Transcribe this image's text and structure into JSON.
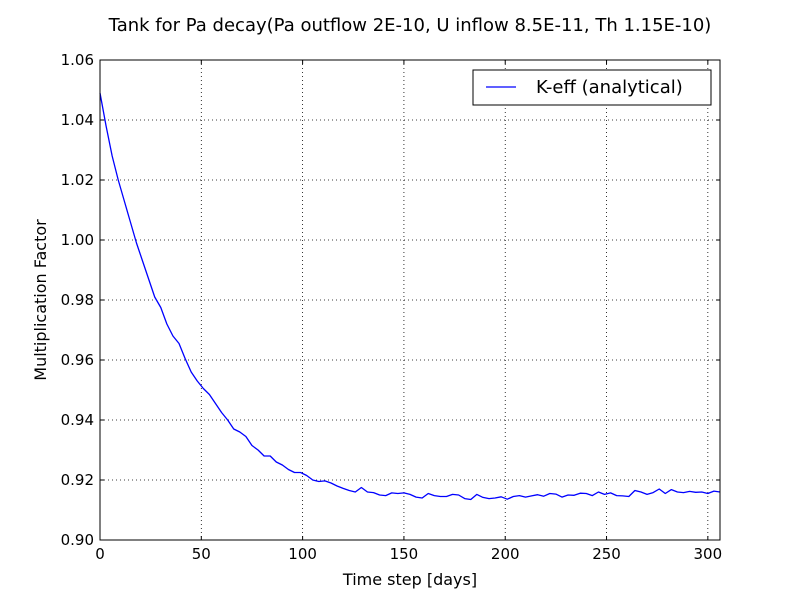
{
  "chart_data": {
    "type": "line",
    "title": "Tank for Pa decay(Pa outflow 2E-10, U inflow 8.5E-11, Th 1.15E-10)",
    "xlabel": "Time step [days]",
    "ylabel": "Multiplication Factor",
    "xlim": [
      0,
      306
    ],
    "ylim": [
      0.9,
      1.06
    ],
    "xticks": [
      0,
      50,
      100,
      150,
      200,
      250,
      300
    ],
    "xtick_labels": [
      "0",
      "50",
      "100",
      "150",
      "200",
      "250",
      "300"
    ],
    "yticks": [
      0.9,
      0.92,
      0.94,
      0.96,
      0.98,
      1.0,
      1.02,
      1.04,
      1.06
    ],
    "ytick_labels": [
      "0.90",
      "0.92",
      "0.94",
      "0.96",
      "0.98",
      "1.00",
      "1.02",
      "1.04",
      "1.06"
    ],
    "grid": true,
    "legend_position": "top-right",
    "colors": {
      "series": "#0000ff",
      "axes": "#000000",
      "grid": "#000000"
    },
    "series": [
      {
        "name": "K-eff (analytical)",
        "x": [
          0,
          3,
          6,
          9,
          12,
          15,
          18,
          21,
          24,
          27,
          30,
          33,
          36,
          39,
          42,
          45,
          48,
          51,
          54,
          57,
          60,
          63,
          66,
          69,
          72,
          75,
          78,
          81,
          84,
          87,
          90,
          93,
          96,
          99,
          102,
          105,
          108,
          111,
          114,
          117,
          120,
          123,
          126,
          129,
          132,
          135,
          138,
          141,
          144,
          147,
          150,
          153,
          156,
          159,
          162,
          165,
          168,
          171,
          174,
          177,
          180,
          183,
          186,
          189,
          192,
          195,
          198,
          201,
          204,
          207,
          210,
          213,
          216,
          219,
          222,
          225,
          228,
          231,
          234,
          237,
          240,
          243,
          246,
          249,
          252,
          255,
          258,
          261,
          264,
          267,
          270,
          273,
          276,
          279,
          282,
          285,
          288,
          291,
          294,
          297,
          300,
          303,
          306
        ],
        "y": [
          1.049,
          1.038,
          1.028,
          1.02,
          1.013,
          1.006,
          0.999,
          0.993,
          0.987,
          0.981,
          0.9775,
          0.972,
          0.968,
          0.9655,
          0.9605,
          0.956,
          0.953,
          0.9505,
          0.9485,
          0.9455,
          0.9425,
          0.94,
          0.937,
          0.936,
          0.9345,
          0.9315,
          0.93,
          0.928,
          0.928,
          0.926,
          0.925,
          0.9235,
          0.9225,
          0.9225,
          0.9215,
          0.92,
          0.9195,
          0.9197,
          0.919,
          0.918,
          0.9172,
          0.9165,
          0.916,
          0.9175,
          0.916,
          0.9158,
          0.915,
          0.9148,
          0.9157,
          0.9155,
          0.9157,
          0.9152,
          0.9143,
          0.914,
          0.9155,
          0.9148,
          0.9145,
          0.9145,
          0.9152,
          0.915,
          0.9138,
          0.9135,
          0.9152,
          0.9142,
          0.9138,
          0.914,
          0.9144,
          0.9136,
          0.9145,
          0.9148,
          0.9143,
          0.9147,
          0.9151,
          0.9146,
          0.9155,
          0.9153,
          0.9143,
          0.915,
          0.9149,
          0.9156,
          0.9155,
          0.9148,
          0.916,
          0.9152,
          0.9157,
          0.9148,
          0.9147,
          0.9145,
          0.9165,
          0.916,
          0.9152,
          0.9158,
          0.917,
          0.9155,
          0.9168,
          0.916,
          0.9158,
          0.9162,
          0.9159,
          0.916,
          0.9155,
          0.9163,
          0.916
        ]
      }
    ]
  }
}
